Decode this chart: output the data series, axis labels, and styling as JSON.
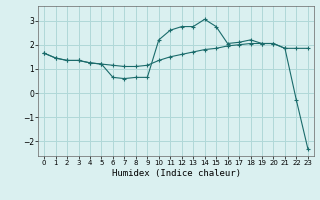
{
  "xlabel": "Humidex (Indice chaleur)",
  "bg_color": "#daf0f0",
  "grid_color": "#b0d8d8",
  "line_color": "#1a6b6b",
  "xlim": [
    -0.5,
    23.5
  ],
  "ylim": [
    -2.6,
    3.6
  ],
  "yticks": [
    -2,
    -1,
    0,
    1,
    2,
    3
  ],
  "xticks": [
    0,
    1,
    2,
    3,
    4,
    5,
    6,
    7,
    8,
    9,
    10,
    11,
    12,
    13,
    14,
    15,
    16,
    17,
    18,
    19,
    20,
    21,
    22,
    23
  ],
  "series1_x": [
    0,
    1,
    2,
    3,
    4,
    5,
    6,
    7,
    8,
    9,
    10,
    11,
    12,
    13,
    14,
    15,
    16,
    17,
    18,
    19,
    20,
    21,
    22,
    23
  ],
  "series1_y": [
    1.65,
    1.45,
    1.35,
    1.35,
    1.25,
    1.2,
    1.15,
    1.1,
    1.1,
    1.15,
    1.35,
    1.5,
    1.6,
    1.7,
    1.8,
    1.85,
    1.95,
    2.0,
    2.05,
    2.05,
    2.05,
    1.85,
    1.85,
    1.85
  ],
  "series2_x": [
    0,
    1,
    2,
    3,
    4,
    5,
    6,
    7,
    8,
    9,
    10,
    11,
    12,
    13,
    14,
    15,
    16,
    17,
    18,
    19,
    20,
    21,
    22,
    23
  ],
  "series2_y": [
    1.65,
    1.45,
    1.35,
    1.35,
    1.25,
    1.2,
    0.65,
    0.6,
    0.65,
    0.65,
    2.2,
    2.6,
    2.75,
    2.75,
    3.05,
    2.75,
    2.05,
    2.1,
    2.2,
    2.05,
    2.05,
    1.85,
    -0.3,
    -2.3
  ]
}
